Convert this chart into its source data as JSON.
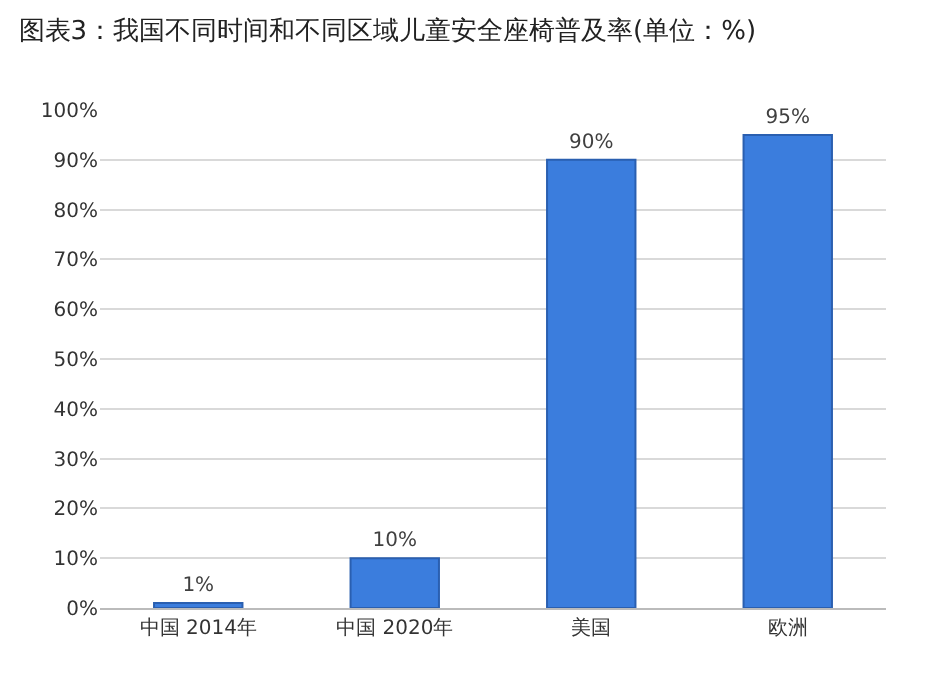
{
  "chart_data": {
    "type": "bar",
    "title": "图表3：我国不同时间和不同区域儿童安全座椅普及率(单位：%)",
    "categories": [
      "中国 2014年",
      "中国 2020年",
      "美国",
      "欧洲"
    ],
    "values": [
      1,
      10,
      90,
      95
    ],
    "value_labels": [
      "1%",
      "10%",
      "90%",
      "95%"
    ],
    "color": "#3b7ddd",
    "ylim": [
      0,
      100
    ],
    "yticks": [
      {
        "value": 0,
        "label": "0%"
      },
      {
        "value": 10,
        "label": "10%"
      },
      {
        "value": 20,
        "label": "20%"
      },
      {
        "value": 30,
        "label": "30%"
      },
      {
        "value": 40,
        "label": "40%"
      },
      {
        "value": 50,
        "label": "50%"
      },
      {
        "value": 60,
        "label": "60%"
      },
      {
        "value": 70,
        "label": "70%"
      },
      {
        "value": 80,
        "label": "80%"
      },
      {
        "value": 90,
        "label": "90%"
      },
      {
        "value": 100,
        "label": "100%"
      }
    ],
    "grid": "y"
  }
}
